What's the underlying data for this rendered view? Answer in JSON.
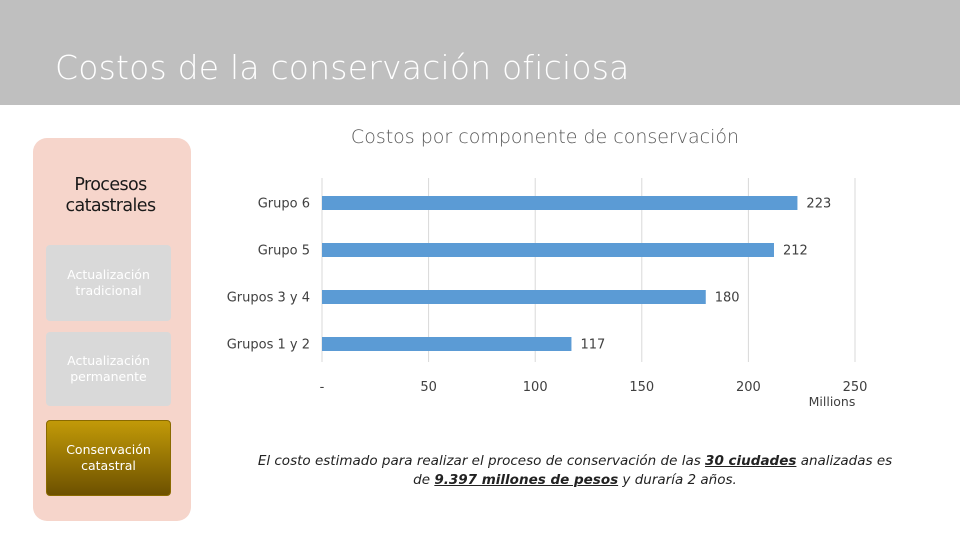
{
  "slide": {
    "title": "Costos de la conservación oficiosa"
  },
  "panel": {
    "title": "Procesos catastrales",
    "steps": [
      {
        "label": "Actualización tradicional",
        "active": false
      },
      {
        "label": "Actualización permanente",
        "active": false
      },
      {
        "label": "Conservación catastral",
        "active": true
      }
    ]
  },
  "chart_data": {
    "type": "bar",
    "orientation": "horizontal",
    "title": "Costos por componente de conservación",
    "categories": [
      "Grupo 6",
      "Grupo 5",
      "Grupos 3 y 4",
      "Grupos 1 y 2"
    ],
    "values": [
      223,
      212,
      180,
      117
    ],
    "data_labels": [
      "223",
      "212",
      "180",
      "117"
    ],
    "xlim": [
      0,
      250
    ],
    "x_ticks": [
      0,
      50,
      100,
      150,
      200,
      250
    ],
    "x_tick_labels": [
      "-",
      "50",
      "100",
      "150",
      "200",
      "250"
    ],
    "x_units_label": "Millions",
    "bar_color": "#5b9bd5",
    "grid": true,
    "legend": "none"
  },
  "note": {
    "part1": "El costo estimado para realizar el proceso de conservación de las ",
    "bold1": "30 ciudades",
    "part2": " analizadas es de ",
    "bold2": "9.397 millones de pesos",
    "part3": " y duraría 2 años."
  }
}
